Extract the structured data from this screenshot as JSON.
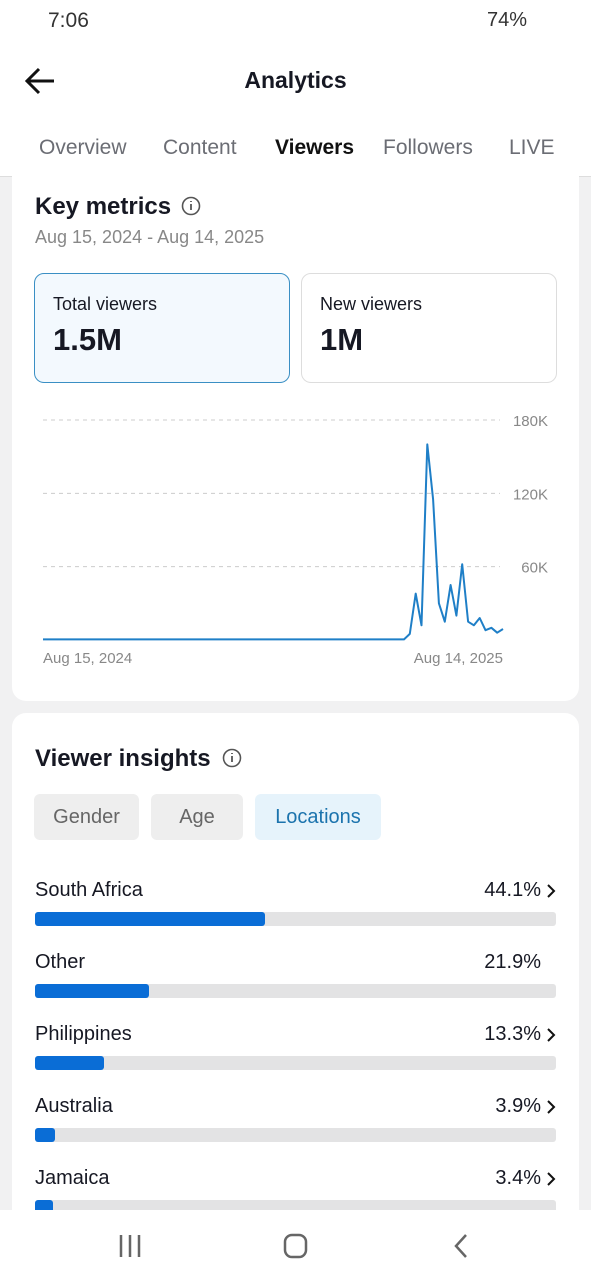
{
  "status_bar": {
    "time": "7:06",
    "battery": "74%"
  },
  "header": {
    "title": "Analytics"
  },
  "tabs": [
    "Overview",
    "Content",
    "Viewers",
    "Followers",
    "LIVE"
  ],
  "key_metrics": {
    "title": "Key metrics",
    "date_range": "Aug 15, 2024 - Aug 14, 2025",
    "cards": [
      {
        "label": "Total viewers",
        "value": "1.5M"
      },
      {
        "label": "New viewers",
        "value": "1M"
      }
    ],
    "chart": {
      "type": "line",
      "color": "#1f7fc7",
      "x_labels": [
        "Aug 15, 2024",
        "Aug 14, 2025"
      ],
      "values": [
        500,
        500,
        500,
        500,
        500,
        500,
        500,
        500,
        500,
        500,
        500,
        500,
        500,
        500,
        500,
        500,
        500,
        500,
        500,
        500,
        500,
        500,
        500,
        500,
        500,
        500,
        500,
        500,
        500,
        500,
        500,
        500,
        500,
        500,
        500,
        500,
        500,
        500,
        500,
        500,
        500,
        500,
        500,
        500,
        500,
        500,
        500,
        500,
        500,
        500,
        500,
        500,
        500,
        500,
        500,
        500,
        500,
        500,
        500,
        500,
        500,
        500,
        500,
        5000,
        38000,
        12000,
        160000,
        115000,
        30000,
        15000,
        45000,
        20000,
        62000,
        15000,
        12000,
        18000,
        8000,
        10000,
        6000,
        9000
      ],
      "ylim": [
        0,
        180000
      ],
      "yticks": [
        {
          "value": 60000,
          "label": "60K"
        },
        {
          "value": 120000,
          "label": "120K"
        },
        {
          "value": 180000,
          "label": "180K"
        }
      ],
      "grid": true
    }
  },
  "viewer_insights": {
    "title": "Viewer insights",
    "filters": [
      "Gender",
      "Age",
      "Locations"
    ],
    "locations": {
      "names": [
        "South Africa",
        "Other",
        "Philippines",
        "Australia",
        "Jamaica"
      ],
      "values": [
        44.1,
        21.9,
        13.3,
        3.9,
        3.4
      ],
      "value_labels": [
        "44.1%",
        "21.9%",
        "13.3%",
        "3.9%",
        "3.4%"
      ],
      "has_arrow": [
        true,
        false,
        true,
        true,
        true
      ],
      "xlim": [
        0,
        100
      ],
      "color": "#0a6dd6"
    }
  }
}
